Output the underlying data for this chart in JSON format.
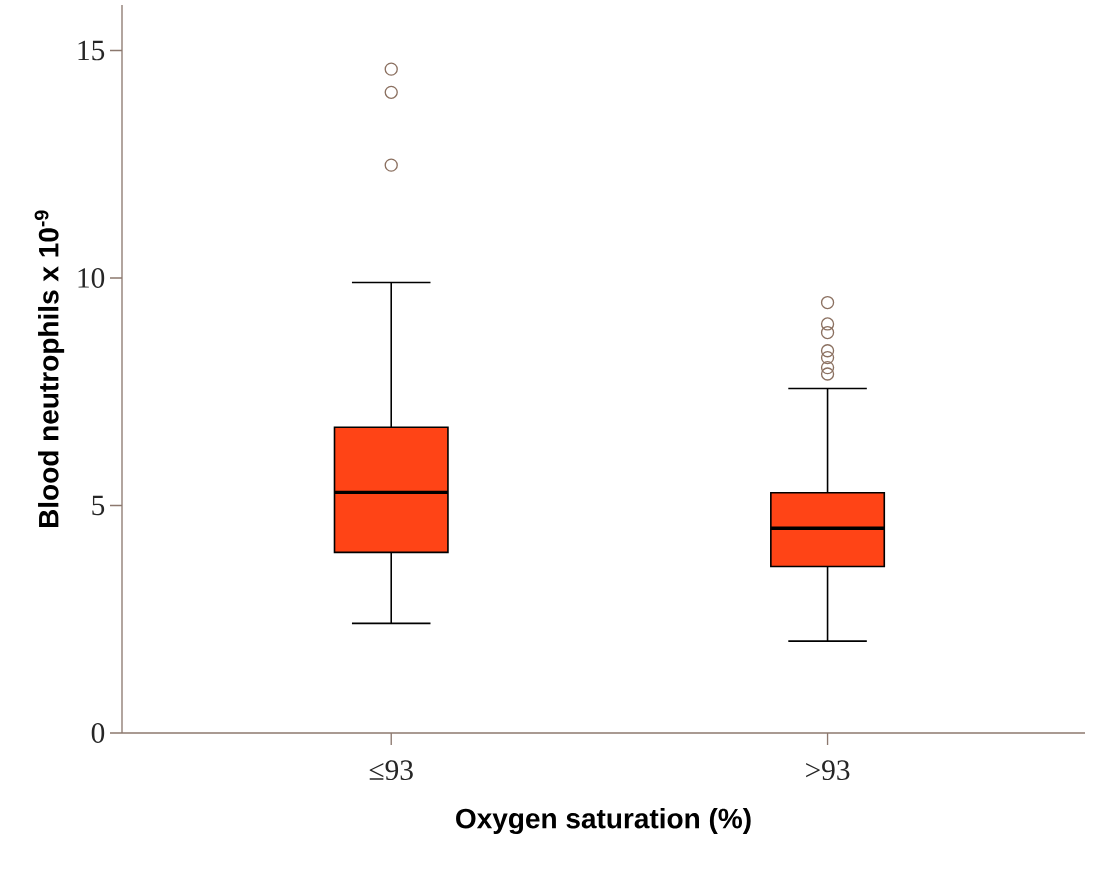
{
  "chart_data": {
    "type": "box",
    "xlabel": "Oxygen saturation (%)",
    "ylabel": "Blood neutrophils x 10$^{-9}$",
    "categories": [
      "≤93",
      ">93"
    ],
    "color": "#ff4416",
    "boxes": [
      {
        "low": 2.41,
        "q1": 3.97,
        "median": 5.29,
        "q3": 6.72,
        "high": 9.9,
        "outliers": [
          12.48,
          14.08,
          14.59
        ]
      },
      {
        "low": 2.02,
        "q1": 3.66,
        "median": 4.5,
        "q3": 5.28,
        "high": 7.57,
        "outliers": [
          7.89,
          8.03,
          8.25,
          8.4,
          8.8,
          8.99,
          9.46
        ]
      }
    ],
    "ylim": [
      0,
      16
    ],
    "yticks": [
      0,
      5,
      10,
      15
    ],
    "grid": false,
    "marker": "circle"
  }
}
